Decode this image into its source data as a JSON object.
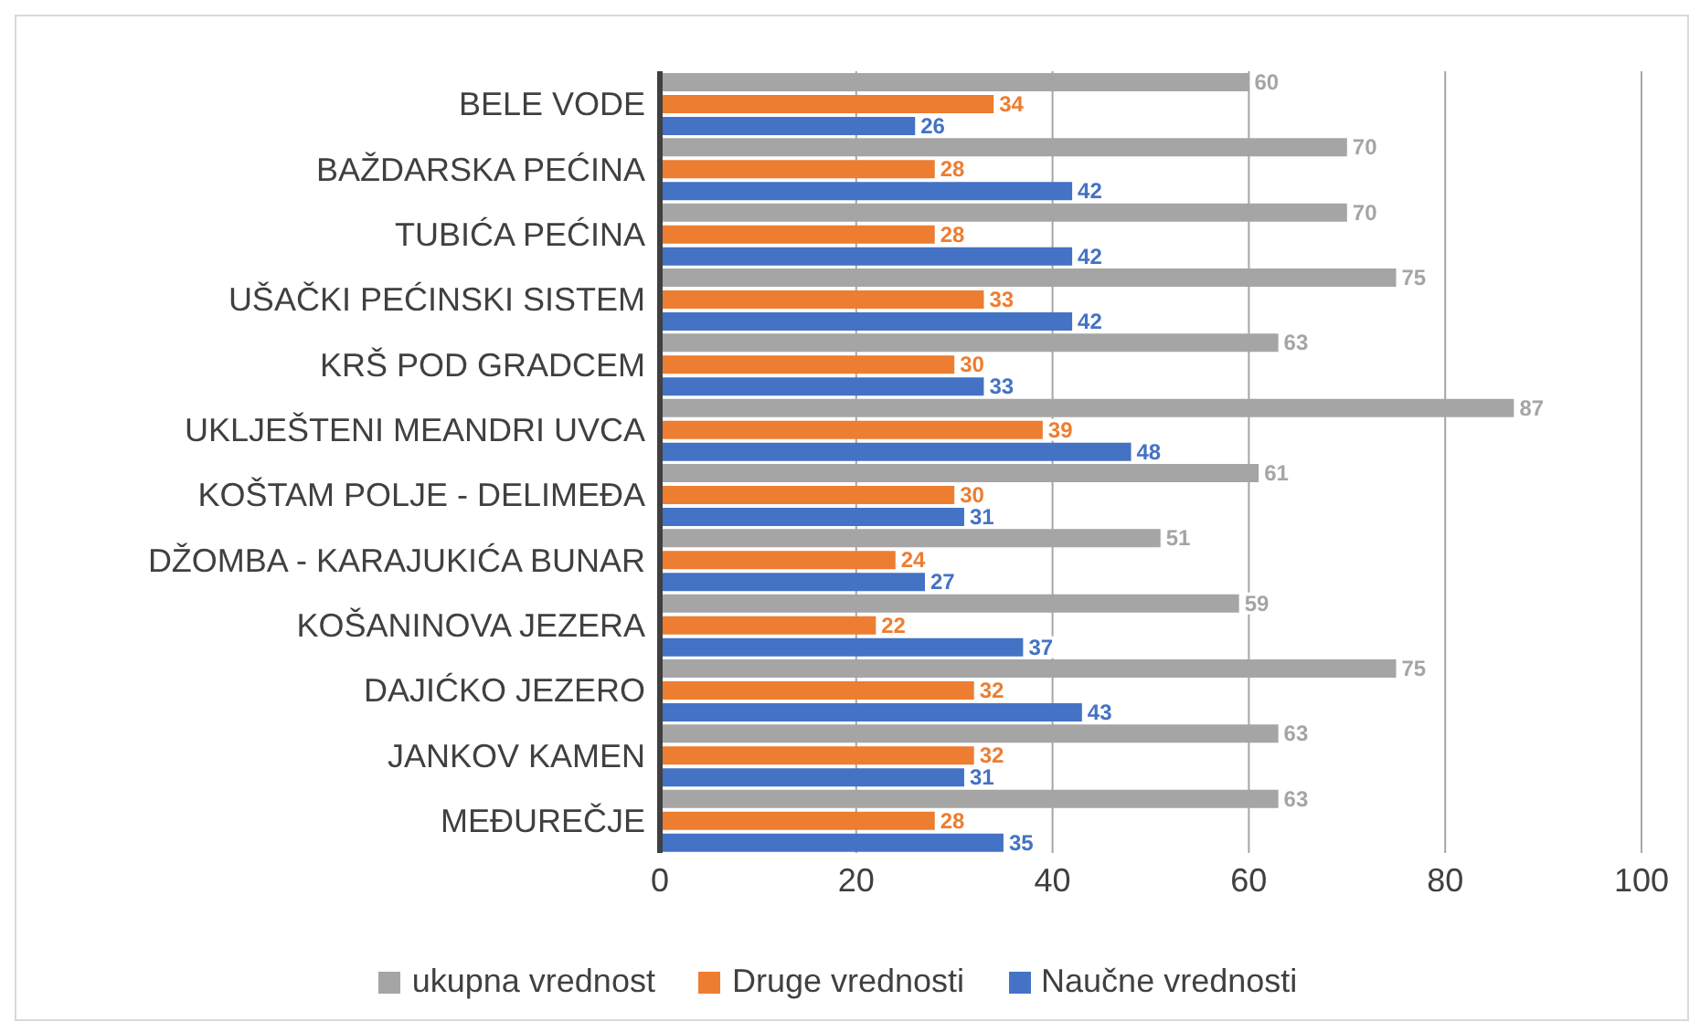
{
  "chart_data": {
    "type": "bar",
    "orientation": "horizontal",
    "categories": [
      "BELE VODE",
      "BAŽDARSKA PEĆINA",
      "TUBIĆA PEĆINA",
      "UŠAČKI PEĆINSKI SISTEM",
      "KRŠ POD GRADCEM",
      "UKLJEŠTENI MEANDRI UVCA",
      "KOŠTAM POLJE - DELIMEĐA",
      "DŽOMBA - KARAJUKIĆA BUNAR",
      "KOŠANINOVA JEZERA",
      "DAJIĆKO JEZERO",
      "JANKOV KAMEN",
      "MEĐUREČJE"
    ],
    "series": [
      {
        "name": "ukupna vrednost",
        "color": "#a5a5a5",
        "values": [
          60,
          70,
          70,
          75,
          63,
          87,
          61,
          51,
          59,
          75,
          63,
          63
        ]
      },
      {
        "name": "Druge vrednosti",
        "color": "#ed7d31",
        "values": [
          34,
          28,
          28,
          33,
          30,
          39,
          30,
          24,
          22,
          32,
          32,
          28
        ]
      },
      {
        "name": "Naučne vrednosti",
        "color": "#4472c4",
        "values": [
          26,
          42,
          42,
          42,
          33,
          48,
          31,
          27,
          37,
          43,
          31,
          35
        ]
      }
    ],
    "xlim": [
      0,
      100
    ],
    "xticks": [
      0,
      20,
      40,
      60,
      80,
      100
    ],
    "grid": "x",
    "legend": "bottom",
    "data_labels": true
  }
}
